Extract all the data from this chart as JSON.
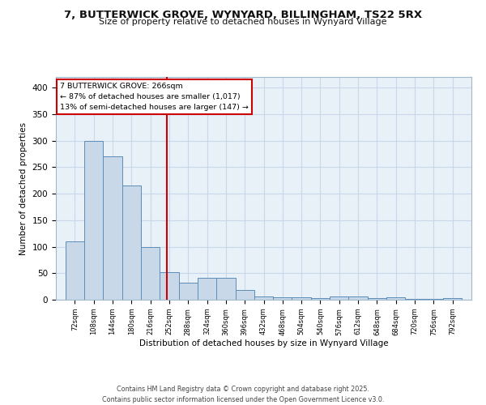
{
  "title_line1": "7, BUTTERWICK GROVE, WYNYARD, BILLINGHAM, TS22 5RX",
  "title_line2": "Size of property relative to detached houses in Wynyard Village",
  "xlabel": "Distribution of detached houses by size in Wynyard Village",
  "ylabel": "Number of detached properties",
  "bar_edges": [
    72,
    108,
    144,
    180,
    216,
    252,
    288,
    324,
    360,
    396,
    432,
    468,
    504,
    540,
    576,
    612,
    648,
    684,
    720,
    756,
    792
  ],
  "bar_heights": [
    110,
    300,
    270,
    215,
    100,
    52,
    32,
    42,
    42,
    18,
    6,
    5,
    5,
    3,
    6,
    6,
    3,
    4,
    1,
    1,
    3
  ],
  "bar_color": "#c8d8e8",
  "bar_edge_color": "#5b8db8",
  "vline_x": 266,
  "vline_color": "#cc0000",
  "annotation_box_text": "7 BUTTERWICK GROVE: 266sqm\n← 87% of detached houses are smaller (1,017)\n13% of semi-detached houses are larger (147) →",
  "annotation_box_color": "#cc0000",
  "ylim": [
    0,
    420
  ],
  "yticks": [
    0,
    50,
    100,
    150,
    200,
    250,
    300,
    350,
    400
  ],
  "tick_labels": [
    "72sqm",
    "108sqm",
    "144sqm",
    "180sqm",
    "216sqm",
    "252sqm",
    "288sqm",
    "324sqm",
    "360sqm",
    "396sqm",
    "432sqm",
    "468sqm",
    "504sqm",
    "540sqm",
    "576sqm",
    "612sqm",
    "648sqm",
    "684sqm",
    "720sqm",
    "756sqm",
    "792sqm"
  ],
  "grid_color": "#c8d8ea",
  "bg_color": "#e8f0f8",
  "footer_text": "Contains HM Land Registry data © Crown copyright and database right 2025.\nContains public sector information licensed under the Open Government Licence v3.0."
}
